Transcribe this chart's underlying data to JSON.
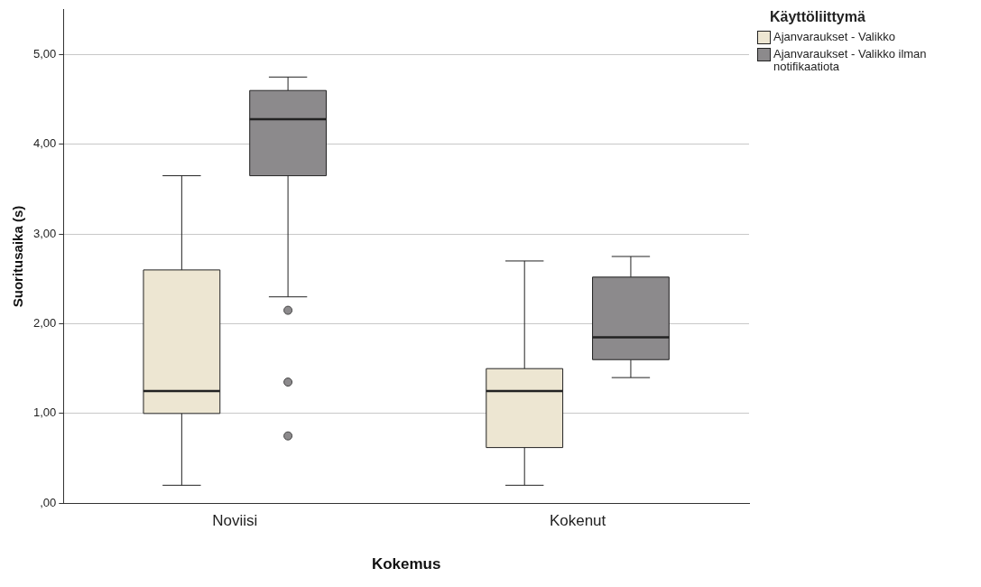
{
  "chart_data": {
    "type": "box",
    "xlabel": "Kokemus",
    "ylabel": "Suoritusaika (s)",
    "legend_title": "Käyttöliittymä",
    "categories": [
      "Noviisi",
      "Kokenut"
    ],
    "series": [
      {
        "name": "Ajanvaraukset - Valikko",
        "color": "#ede6d2",
        "boxes": [
          {
            "low": 0.2,
            "q1": 1.0,
            "median": 1.25,
            "q3": 2.6,
            "high": 3.65
          },
          {
            "low": 0.2,
            "q1": 0.62,
            "median": 1.25,
            "q3": 1.5,
            "high": 2.7
          }
        ]
      },
      {
        "name": "Ajanvaraukset - Valikko ilman notifikaatiota",
        "color": "#8c8a8c",
        "boxes": [
          {
            "low": 2.3,
            "q1": 3.65,
            "median": 4.28,
            "q3": 4.6,
            "high": 4.75,
            "outliers": [
              2.15,
              1.35,
              0.75
            ]
          },
          {
            "low": 1.4,
            "q1": 1.6,
            "median": 1.85,
            "q3": 2.52,
            "high": 2.75
          }
        ]
      }
    ],
    "ylim": [
      0,
      5.5
    ],
    "yticks": [
      {
        "value": 0,
        "label": ",00"
      },
      {
        "value": 1,
        "label": "1,00"
      },
      {
        "value": 2,
        "label": "2,00"
      },
      {
        "value": 3,
        "label": "3,00"
      },
      {
        "value": 4,
        "label": "4,00"
      },
      {
        "value": 5,
        "label": "5,00"
      }
    ],
    "grid": "y",
    "legend": "top right"
  }
}
